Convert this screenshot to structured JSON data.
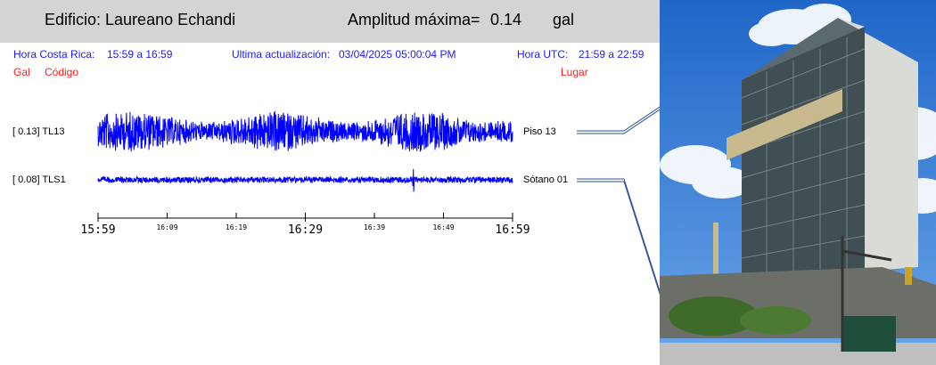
{
  "header": {
    "building_label": "Edificio: Laureano Echandi",
    "amplitude_label": "Amplitud máxima=",
    "amplitude_value": "0.14",
    "amplitude_unit": "gal"
  },
  "info": {
    "local_time_label": "Hora Costa Rica:",
    "local_time_range": "15:59 a 16:59",
    "update_label": "Ultima actualización:",
    "update_value": "03/04/2025 05:00:04 PM",
    "utc_label": "Hora UTC:",
    "utc_range": "21:59 a 22:59"
  },
  "columns": {
    "gal": "Gal",
    "code": "Código",
    "place": "Lugar"
  },
  "chart_data": {
    "type": "line",
    "x_range": [
      "15:59",
      "16:59"
    ],
    "x_ticks_major": [
      "15:59",
      "16:29",
      "16:59"
    ],
    "x_ticks_minor": [
      "16:09",
      "16:19",
      "16:39",
      "16:49"
    ],
    "series": [
      {
        "name": "TL13",
        "gal": "0.13",
        "left_label": "[   0.13] TL13",
        "place": "Piso 13",
        "color": "#0000ff",
        "max_amplitude": 0.13
      },
      {
        "name": "TLS1",
        "gal": "0.08",
        "left_label": "[   0.08] TLS1",
        "place": "Sótano 01",
        "color": "#0000ff",
        "max_amplitude": 0.08
      }
    ]
  },
  "colors": {
    "header_bg": "#d4d4d4",
    "info_text": "#1a1aff",
    "label_red": "#ff1a1a",
    "trace": "#0000ff"
  }
}
